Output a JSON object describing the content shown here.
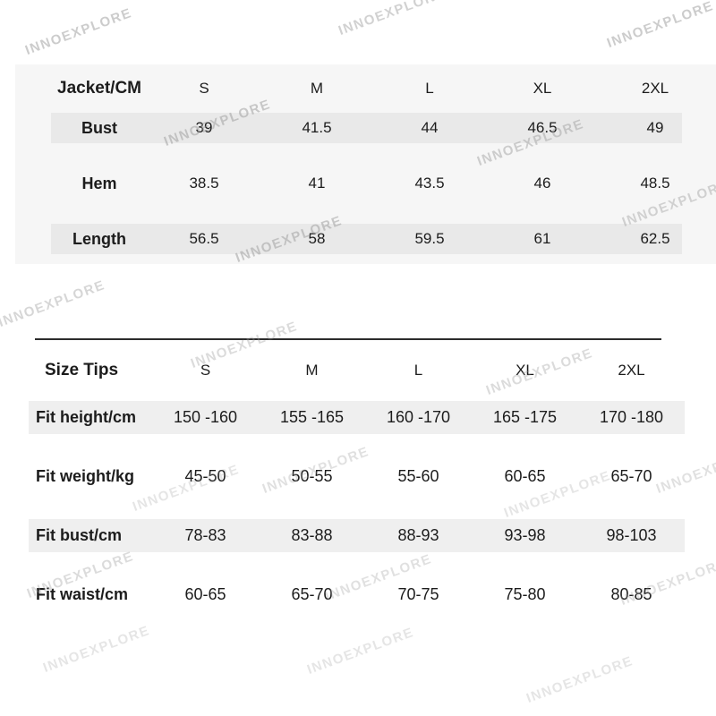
{
  "watermark": {
    "text": "INNOEXPLORE",
    "color": "#c9c9c9"
  },
  "chart_data": [
    {
      "type": "table",
      "title": "Jacket/CM",
      "columns": [
        "Jacket/CM",
        "S",
        "M",
        "L",
        "XL",
        "2XL"
      ],
      "rows": [
        [
          "Bust",
          39,
          41.5,
          44,
          46.5,
          49
        ],
        [
          "Hem",
          38.5,
          41,
          43.5,
          46,
          48.5
        ],
        [
          "Length",
          56.5,
          58,
          59.5,
          61,
          62.5
        ]
      ]
    },
    {
      "type": "table",
      "title": "Size Tips",
      "columns": [
        "Size Tips",
        "S",
        "M",
        "L",
        "XL",
        "2XL"
      ],
      "rows": [
        [
          "Fit height/cm",
          "150 -160",
          "155 -165",
          "160 -170",
          "165 -175",
          "170 -180"
        ],
        [
          "Fit weight/kg",
          "45-50",
          "50-55",
          "55-60",
          "60-65",
          "65-70"
        ],
        [
          "Fit bust/cm",
          "78-83",
          "83-88",
          "88-93",
          "93-98",
          "98-103"
        ],
        [
          "Fit waist/cm",
          "60-65",
          "65-70",
          "70-75",
          "75-80",
          "80-85"
        ]
      ]
    }
  ]
}
